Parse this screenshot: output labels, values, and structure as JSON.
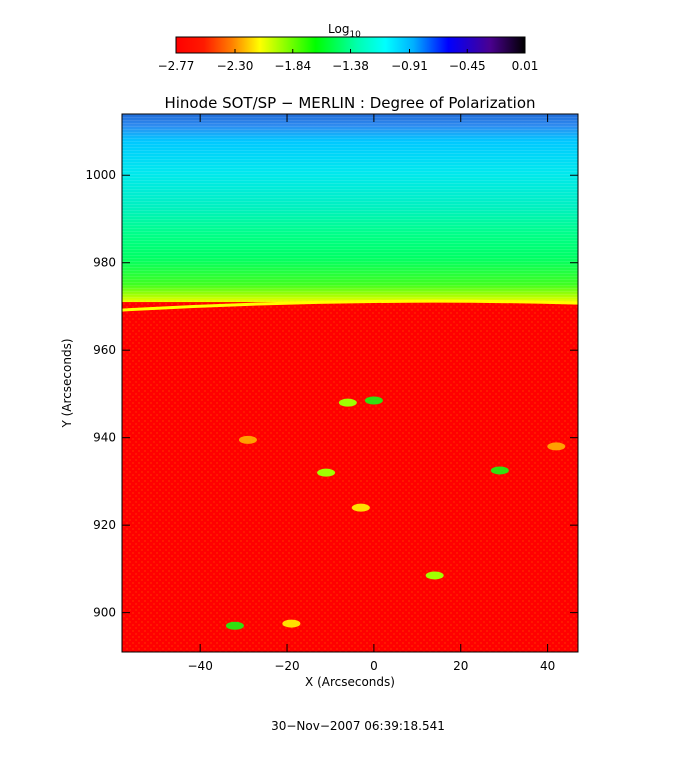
{
  "chart_data": {
    "type": "heatmap",
    "title": "Hinode SOT/SP − MERLIN : Degree of Polarization",
    "xlabel": "X (Arcseconds)",
    "ylabel": "Y (Arcseconds)",
    "xlim": [
      -58,
      47
    ],
    "ylim": [
      891,
      1014
    ],
    "xticks": [
      -40,
      -20,
      0,
      20,
      40
    ],
    "yticks": [
      900,
      920,
      940,
      960,
      980,
      1000
    ],
    "xtick_labels": [
      "−40",
      "−20",
      "0",
      "20",
      "40"
    ],
    "ytick_labels": [
      "900",
      "920",
      "940",
      "960",
      "980",
      "1000"
    ],
    "colorbar": {
      "label": "Log",
      "label_sub": "10",
      "ticks": [
        -2.77,
        -2.3,
        -1.84,
        -1.38,
        -0.91,
        -0.45,
        0.01
      ],
      "tick_labels": [
        "−2.77",
        "−2.30",
        "−1.84",
        "−1.38",
        "−0.91",
        "−0.45",
        "0.01"
      ],
      "colors": [
        "#ff0000",
        "#ffff00",
        "#00ff00",
        "#00ffff",
        "#0000ff",
        "#000000"
      ]
    },
    "limb_y": 971,
    "features": [
      {
        "x": 0,
        "y": 948.5,
        "value": -1.8
      },
      {
        "x": -6,
        "y": 948,
        "value": -1.9
      },
      {
        "x": -11,
        "y": 932,
        "value": -2.0
      },
      {
        "x": 29,
        "y": 932.5,
        "value": -1.7
      },
      {
        "x": 14,
        "y": 908.5,
        "value": -1.9
      },
      {
        "x": -32,
        "y": 897,
        "value": -1.7
      },
      {
        "x": -3,
        "y": 924,
        "value": -2.1
      },
      {
        "x": -29,
        "y": 939.5,
        "value": -2.3
      },
      {
        "x": -19,
        "y": 897.5,
        "value": -2.1
      },
      {
        "x": 42,
        "y": 938,
        "value": -2.3
      }
    ]
  },
  "footer": {
    "timestamp": "30−Nov−2007 06:39:18.541"
  }
}
